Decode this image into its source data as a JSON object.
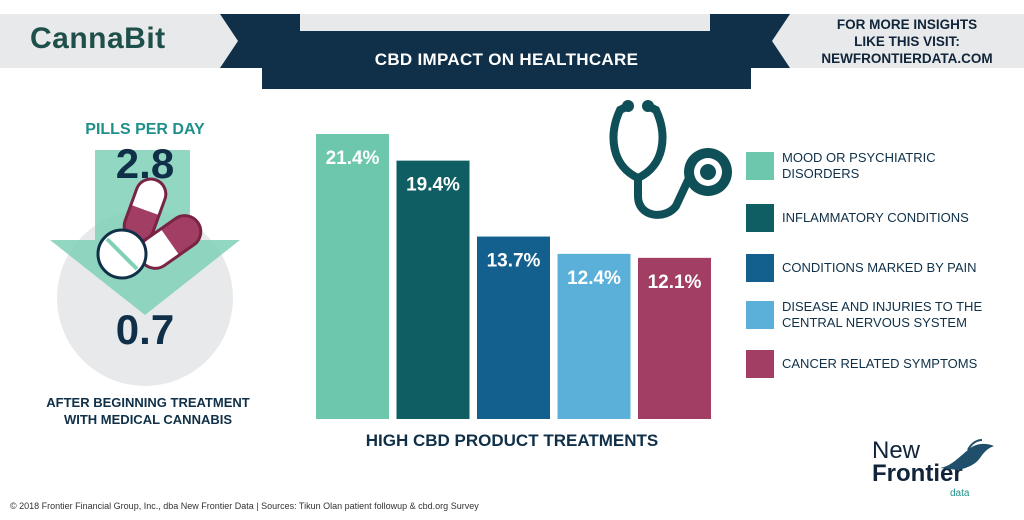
{
  "brand": {
    "logo": "CannaBit"
  },
  "header": {
    "title": "CBD IMPACT ON HEALTHCARE",
    "insights_line1": "FOR MORE INSIGHTS",
    "insights_line2": "LIKE THIS VISIT:",
    "insights_line3": "NEWFRONTIERDATA.COM"
  },
  "pills": {
    "title": "PILLS PER DAY",
    "before": "2.8",
    "after": "0.7",
    "after_text": "AFTER BEGINNING TREATMENT WITH MEDICAL CANNABIS"
  },
  "colors": {
    "navy": "#0f3048",
    "mint": "#6cc7ac",
    "teal": "#0e5e63",
    "blue": "#135f8e",
    "sky": "#5ab0d8",
    "plum": "#a23d63"
  },
  "chart_data": {
    "type": "bar",
    "title": "CBD IMPACT ON HEALTHCARE",
    "xlabel": "HIGH CBD PRODUCT TREATMENTS",
    "ylabel": "",
    "ylim": [
      0,
      25
    ],
    "grid": false,
    "legend": "right",
    "categories": [
      "MOOD OR PSYCHIATRIC DISORDERS",
      "INFLAMMATORY CONDITIONS",
      "CONDITIONS MARKED BY PAIN",
      "DISEASE AND INJURIES TO THE CENTRAL NERVOUS SYSTEM",
      "CANCER RELATED SYMPTOMS"
    ],
    "values": [
      21.4,
      19.4,
      13.7,
      12.4,
      12.1
    ],
    "labels": [
      "21.4%",
      "19.4%",
      "13.7%",
      "12.4%",
      "12.1%"
    ],
    "colors": [
      "#6cc7ac",
      "#0e5e63",
      "#135f8e",
      "#5ab0d8",
      "#a23d63"
    ]
  },
  "legend_lines": [
    [
      "MOOD OR PSYCHIATRIC",
      "DISORDERS"
    ],
    [
      "INFLAMMATORY CONDITIONS"
    ],
    [
      "CONDITIONS MARKED BY PAIN"
    ],
    [
      "DISEASE AND INJURIES TO THE",
      "CENTRAL NERVOUS SYSTEM"
    ],
    [
      "CANCER RELATED SYMPTOMS"
    ]
  ],
  "footer": {
    "text": "© 2018 Frontier Financial Group, Inc., dba New Frontier Data | Sources: Tikun Olan patient followup  & cbd.org Survey"
  },
  "publisher": {
    "new": "New",
    "frontier": "Frontier",
    "data": "data"
  }
}
